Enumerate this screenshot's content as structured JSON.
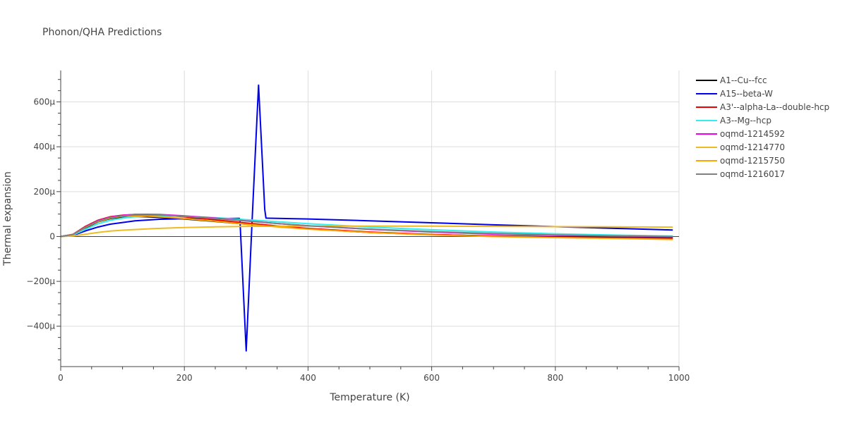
{
  "chart_data": {
    "type": "line",
    "title": "Phonon/QHA Predictions",
    "xlabel": "Temperature (K)",
    "ylabel": "Thermal expansion",
    "xlim": [
      0,
      1000
    ],
    "ylim": [
      -580,
      740
    ],
    "x_ticks": [
      0,
      200,
      400,
      600,
      800,
      1000
    ],
    "x_tick_labels": [
      "0",
      "200",
      "400",
      "600",
      "800",
      "1000"
    ],
    "y_ticks": [
      -400,
      -200,
      0,
      200,
      400,
      600
    ],
    "y_tick_labels": [
      "−400μ",
      "−200μ",
      "0",
      "200μ",
      "400μ",
      "600μ"
    ],
    "y_unit": "μ (1e-6 per K)",
    "grid": true,
    "legend_position": "top-right",
    "series": [
      {
        "name": "A1--Cu--fcc",
        "color": "#000000",
        "points": [
          [
            0,
            0
          ],
          [
            20,
            8
          ],
          [
            40,
            38
          ],
          [
            60,
            65
          ],
          [
            80,
            80
          ],
          [
            100,
            87
          ],
          [
            120,
            89
          ],
          [
            140,
            88
          ],
          [
            160,
            85
          ],
          [
            200,
            78
          ],
          [
            250,
            67
          ],
          [
            300,
            55
          ],
          [
            350,
            44
          ],
          [
            400,
            34
          ],
          [
            500,
            18
          ],
          [
            600,
            8
          ],
          [
            700,
            2
          ],
          [
            800,
            -2
          ],
          [
            900,
            -3
          ],
          [
            990,
            -4
          ]
        ]
      },
      {
        "name": "A15--beta-W",
        "color": "#0000ee",
        "points": [
          [
            0,
            0
          ],
          [
            20,
            5
          ],
          [
            40,
            25
          ],
          [
            60,
            42
          ],
          [
            80,
            55
          ],
          [
            120,
            70
          ],
          [
            160,
            77
          ],
          [
            200,
            79
          ],
          [
            250,
            80
          ],
          [
            289,
            81
          ],
          [
            290,
            70
          ],
          [
            300,
            -510
          ],
          [
            310,
            100
          ],
          [
            320,
            675
          ],
          [
            330,
            120
          ],
          [
            332,
            82
          ],
          [
            400,
            78
          ],
          [
            500,
            70
          ],
          [
            600,
            61
          ],
          [
            700,
            52
          ],
          [
            800,
            44
          ],
          [
            900,
            36
          ],
          [
            990,
            29
          ]
        ]
      },
      {
        "name": "A3'--alpha-La--double-hcp",
        "color": "#ee0000",
        "points": [
          [
            0,
            0
          ],
          [
            20,
            10
          ],
          [
            40,
            45
          ],
          [
            60,
            72
          ],
          [
            80,
            88
          ],
          [
            100,
            95
          ],
          [
            120,
            98
          ],
          [
            140,
            98
          ],
          [
            160,
            96
          ],
          [
            200,
            88
          ],
          [
            250,
            74
          ],
          [
            300,
            60
          ],
          [
            350,
            47
          ],
          [
            400,
            36
          ],
          [
            500,
            20
          ],
          [
            600,
            9
          ],
          [
            700,
            1
          ],
          [
            800,
            -4
          ],
          [
            900,
            -7
          ],
          [
            990,
            -9
          ]
        ]
      },
      {
        "name": "A3--Mg--hcp",
        "color": "#33eeee",
        "points": [
          [
            0,
            0
          ],
          [
            20,
            6
          ],
          [
            40,
            32
          ],
          [
            60,
            56
          ],
          [
            80,
            72
          ],
          [
            100,
            82
          ],
          [
            120,
            88
          ],
          [
            140,
            91
          ],
          [
            160,
            92
          ],
          [
            200,
            90
          ],
          [
            250,
            84
          ],
          [
            300,
            75
          ],
          [
            350,
            66
          ],
          [
            400,
            57
          ],
          [
            500,
            42
          ],
          [
            600,
            30
          ],
          [
            700,
            20
          ],
          [
            800,
            12
          ],
          [
            900,
            6
          ],
          [
            990,
            2
          ]
        ]
      },
      {
        "name": "oqmd-1214592",
        "color": "#ee00ee",
        "points": [
          [
            0,
            0
          ],
          [
            20,
            9
          ],
          [
            40,
            42
          ],
          [
            60,
            70
          ],
          [
            80,
            86
          ],
          [
            100,
            94
          ],
          [
            120,
            98
          ],
          [
            140,
            99
          ],
          [
            160,
            98
          ],
          [
            200,
            92
          ],
          [
            250,
            82
          ],
          [
            300,
            70
          ],
          [
            350,
            58
          ],
          [
            400,
            48
          ],
          [
            500,
            32
          ],
          [
            600,
            20
          ],
          [
            700,
            11
          ],
          [
            800,
            5
          ],
          [
            900,
            1
          ],
          [
            990,
            -1
          ]
        ]
      },
      {
        "name": "oqmd-1214770",
        "color": "#eebb22",
        "points": [
          [
            0,
            0
          ],
          [
            20,
            2
          ],
          [
            40,
            10
          ],
          [
            60,
            18
          ],
          [
            80,
            24
          ],
          [
            100,
            28
          ],
          [
            150,
            35
          ],
          [
            200,
            40
          ],
          [
            250,
            43
          ],
          [
            300,
            45
          ],
          [
            350,
            46
          ],
          [
            400,
            46
          ],
          [
            500,
            46
          ],
          [
            600,
            46
          ],
          [
            700,
            45
          ],
          [
            800,
            44
          ],
          [
            900,
            43
          ],
          [
            990,
            42
          ]
        ]
      },
      {
        "name": "oqmd-1215750",
        "color": "#ffa500",
        "points": [
          [
            0,
            0
          ],
          [
            20,
            9
          ],
          [
            40,
            40
          ],
          [
            60,
            66
          ],
          [
            80,
            82
          ],
          [
            100,
            90
          ],
          [
            120,
            92
          ],
          [
            140,
            91
          ],
          [
            160,
            88
          ],
          [
            200,
            80
          ],
          [
            250,
            68
          ],
          [
            300,
            55
          ],
          [
            350,
            43
          ],
          [
            400,
            33
          ],
          [
            500,
            18
          ],
          [
            600,
            7
          ],
          [
            700,
            0
          ],
          [
            800,
            -5
          ],
          [
            900,
            -9
          ],
          [
            990,
            -13
          ]
        ]
      },
      {
        "name": "oqmd-1216017",
        "color": "#808080",
        "points": [
          [
            0,
            0
          ],
          [
            20,
            9
          ],
          [
            40,
            41
          ],
          [
            60,
            68
          ],
          [
            80,
            84
          ],
          [
            100,
            92
          ],
          [
            120,
            96
          ],
          [
            140,
            97
          ],
          [
            160,
            96
          ],
          [
            200,
            90
          ],
          [
            250,
            80
          ],
          [
            300,
            69
          ],
          [
            350,
            58
          ],
          [
            400,
            48
          ],
          [
            500,
            33
          ],
          [
            600,
            22
          ],
          [
            700,
            13
          ],
          [
            800,
            7
          ],
          [
            900,
            3
          ],
          [
            990,
            0
          ]
        ]
      }
    ]
  }
}
